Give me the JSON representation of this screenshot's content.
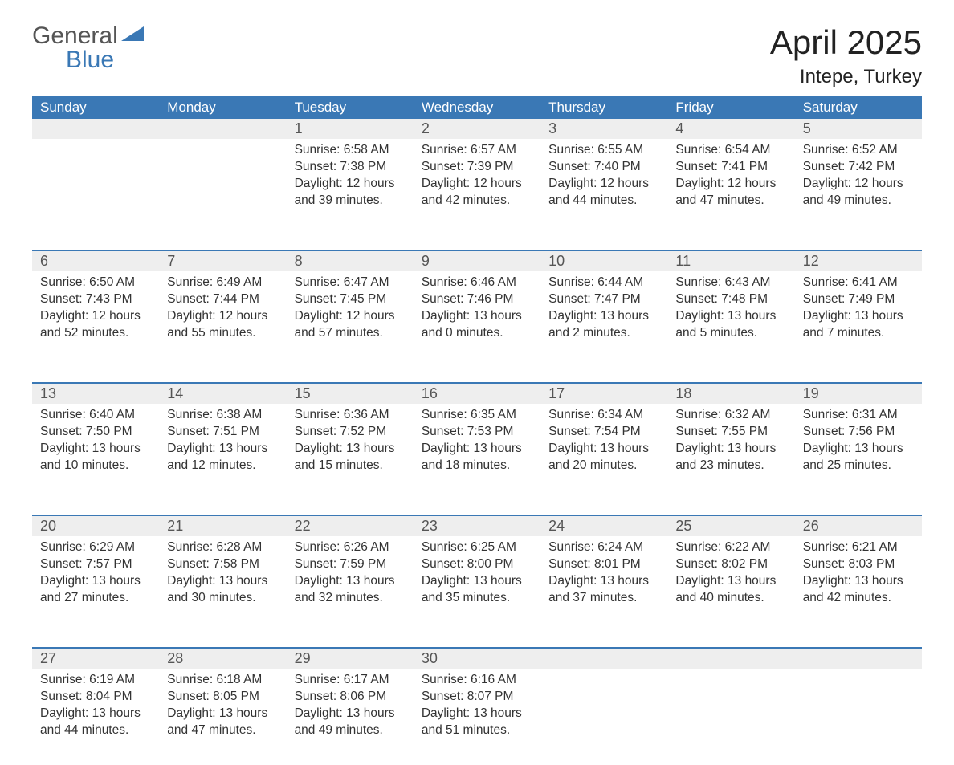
{
  "brand": {
    "word1": "General",
    "word2": "Blue",
    "accent_color": "#3a78b5",
    "text_color": "#555555"
  },
  "title": {
    "month": "April 2025",
    "location": "Intepe, Turkey"
  },
  "colors": {
    "header_bg": "#3a78b5",
    "header_text": "#ffffff",
    "daynum_bg": "#eeeeee",
    "daynum_text": "#555555",
    "body_text": "#333333",
    "divider": "#3a78b5",
    "page_bg": "#ffffff"
  },
  "typography": {
    "title_fontsize": 42,
    "location_fontsize": 24,
    "header_fontsize": 17,
    "daynum_fontsize": 18,
    "body_fontsize": 15.5,
    "font_family": "Segoe UI"
  },
  "day_names": [
    "Sunday",
    "Monday",
    "Tuesday",
    "Wednesday",
    "Thursday",
    "Friday",
    "Saturday"
  ],
  "weeks": [
    [
      null,
      null,
      {
        "n": "1",
        "sr": "6:58 AM",
        "ss": "7:38 PM",
        "dl": "12 hours and 39 minutes."
      },
      {
        "n": "2",
        "sr": "6:57 AM",
        "ss": "7:39 PM",
        "dl": "12 hours and 42 minutes."
      },
      {
        "n": "3",
        "sr": "6:55 AM",
        "ss": "7:40 PM",
        "dl": "12 hours and 44 minutes."
      },
      {
        "n": "4",
        "sr": "6:54 AM",
        "ss": "7:41 PM",
        "dl": "12 hours and 47 minutes."
      },
      {
        "n": "5",
        "sr": "6:52 AM",
        "ss": "7:42 PM",
        "dl": "12 hours and 49 minutes."
      }
    ],
    [
      {
        "n": "6",
        "sr": "6:50 AM",
        "ss": "7:43 PM",
        "dl": "12 hours and 52 minutes."
      },
      {
        "n": "7",
        "sr": "6:49 AM",
        "ss": "7:44 PM",
        "dl": "12 hours and 55 minutes."
      },
      {
        "n": "8",
        "sr": "6:47 AM",
        "ss": "7:45 PM",
        "dl": "12 hours and 57 minutes."
      },
      {
        "n": "9",
        "sr": "6:46 AM",
        "ss": "7:46 PM",
        "dl": "13 hours and 0 minutes."
      },
      {
        "n": "10",
        "sr": "6:44 AM",
        "ss": "7:47 PM",
        "dl": "13 hours and 2 minutes."
      },
      {
        "n": "11",
        "sr": "6:43 AM",
        "ss": "7:48 PM",
        "dl": "13 hours and 5 minutes."
      },
      {
        "n": "12",
        "sr": "6:41 AM",
        "ss": "7:49 PM",
        "dl": "13 hours and 7 minutes."
      }
    ],
    [
      {
        "n": "13",
        "sr": "6:40 AM",
        "ss": "7:50 PM",
        "dl": "13 hours and 10 minutes."
      },
      {
        "n": "14",
        "sr": "6:38 AM",
        "ss": "7:51 PM",
        "dl": "13 hours and 12 minutes."
      },
      {
        "n": "15",
        "sr": "6:36 AM",
        "ss": "7:52 PM",
        "dl": "13 hours and 15 minutes."
      },
      {
        "n": "16",
        "sr": "6:35 AM",
        "ss": "7:53 PM",
        "dl": "13 hours and 18 minutes."
      },
      {
        "n": "17",
        "sr": "6:34 AM",
        "ss": "7:54 PM",
        "dl": "13 hours and 20 minutes."
      },
      {
        "n": "18",
        "sr": "6:32 AM",
        "ss": "7:55 PM",
        "dl": "13 hours and 23 minutes."
      },
      {
        "n": "19",
        "sr": "6:31 AM",
        "ss": "7:56 PM",
        "dl": "13 hours and 25 minutes."
      }
    ],
    [
      {
        "n": "20",
        "sr": "6:29 AM",
        "ss": "7:57 PM",
        "dl": "13 hours and 27 minutes."
      },
      {
        "n": "21",
        "sr": "6:28 AM",
        "ss": "7:58 PM",
        "dl": "13 hours and 30 minutes."
      },
      {
        "n": "22",
        "sr": "6:26 AM",
        "ss": "7:59 PM",
        "dl": "13 hours and 32 minutes."
      },
      {
        "n": "23",
        "sr": "6:25 AM",
        "ss": "8:00 PM",
        "dl": "13 hours and 35 minutes."
      },
      {
        "n": "24",
        "sr": "6:24 AM",
        "ss": "8:01 PM",
        "dl": "13 hours and 37 minutes."
      },
      {
        "n": "25",
        "sr": "6:22 AM",
        "ss": "8:02 PM",
        "dl": "13 hours and 40 minutes."
      },
      {
        "n": "26",
        "sr": "6:21 AM",
        "ss": "8:03 PM",
        "dl": "13 hours and 42 minutes."
      }
    ],
    [
      {
        "n": "27",
        "sr": "6:19 AM",
        "ss": "8:04 PM",
        "dl": "13 hours and 44 minutes."
      },
      {
        "n": "28",
        "sr": "6:18 AM",
        "ss": "8:05 PM",
        "dl": "13 hours and 47 minutes."
      },
      {
        "n": "29",
        "sr": "6:17 AM",
        "ss": "8:06 PM",
        "dl": "13 hours and 49 minutes."
      },
      {
        "n": "30",
        "sr": "6:16 AM",
        "ss": "8:07 PM",
        "dl": "13 hours and 51 minutes."
      },
      null,
      null,
      null
    ]
  ],
  "labels": {
    "sunrise": "Sunrise:",
    "sunset": "Sunset:",
    "daylight": "Daylight:"
  }
}
